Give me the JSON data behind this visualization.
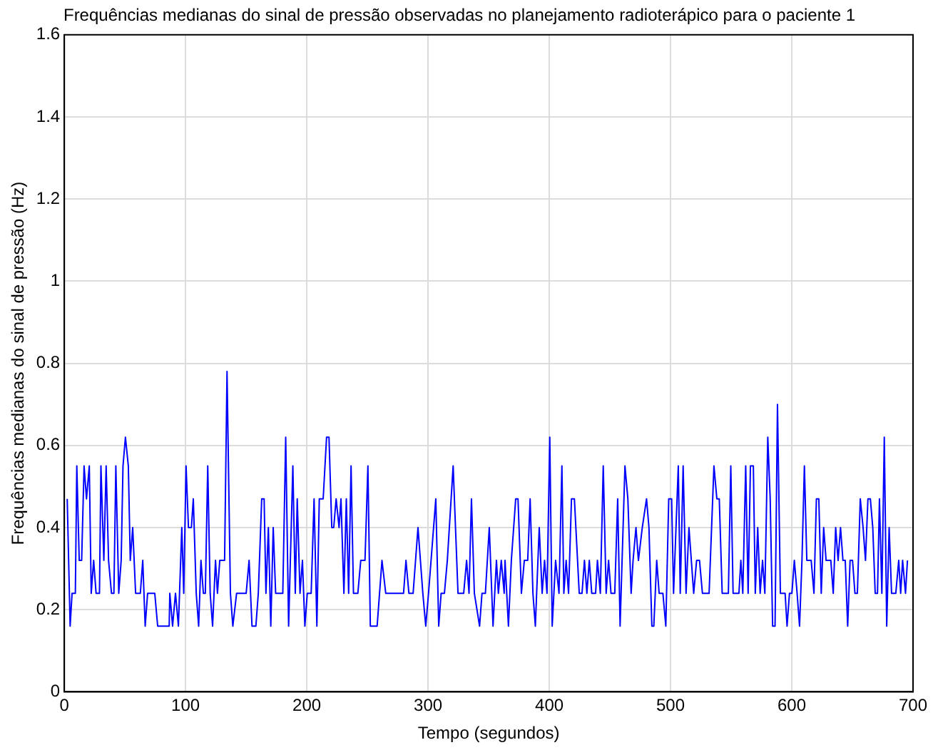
{
  "chart_data": {
    "type": "line",
    "title": "Frequências medianas do sinal de pressão observadas no planejamento radioterápico para o paciente 1",
    "xlabel": "Tempo (segundos)",
    "ylabel": "Frequências medianas do sinal de pressão (Hz)",
    "xlim": [
      0,
      700
    ],
    "xticks": [
      0,
      100,
      200,
      300,
      400,
      500,
      600,
      700
    ],
    "ylim": [
      0,
      1.6
    ],
    "yticks": [
      0,
      0.2,
      0.4,
      0.6,
      0.8,
      1,
      1.2,
      1.4,
      1.6
    ],
    "grid": true,
    "legend": false,
    "marker": "none",
    "line_style": "solid",
    "series": [
      {
        "color": "#0000ff",
        "x": [
          2.4,
          4.8,
          6.4,
          9.1,
          10.3,
          12.3,
          14.3,
          16.3,
          18.3,
          20.6,
          22.2,
          24.2,
          26.2,
          29,
          30.2,
          32.6,
          34.5,
          36.5,
          38.9,
          40.9,
          42.5,
          44.9,
          46.9,
          48.4,
          50.4,
          52.8,
          54.4,
          56.4,
          58.8,
          62.7,
          64.7,
          66.7,
          68.7,
          74.6,
          77,
          86.5,
          87,
          89.3,
          91.7,
          94.1,
          96.9,
          98.5,
          100.4,
          102.4,
          104.8,
          106.4,
          108.8,
          110.8,
          112.7,
          114.7,
          116.3,
          118.3,
          120.3,
          122.3,
          124.7,
          126.3,
          128.2,
          132.2,
          134.2,
          137,
          139,
          142.1,
          150,
          152.4,
          154.8,
          158,
          160,
          162.8,
          164.8,
          166.3,
          168.3,
          170.3,
          172.3,
          174.3,
          180.2,
          182.6,
          185,
          188.5,
          190.5,
          192.1,
          194.4,
          196.4,
          198.4,
          200.4,
          203.6,
          206,
          208.3,
          210.3,
          213.5,
          216.3,
          218.3,
          220.6,
          222.2,
          224.2,
          226.6,
          228.2,
          230.6,
          232.6,
          234.5,
          236.5,
          238.5,
          242.1,
          244.5,
          248,
          250.4,
          252.4,
          258,
          262,
          265.1,
          279.8,
          281.8,
          284.2,
          287.7,
          291.7,
          295.7,
          298.1,
          300.4,
          306.4,
          308.8,
          310.8,
          313.5,
          315.9,
          320.7,
          324.7,
          329.4,
          331.8,
          333.8,
          335.8,
          338.2,
          342.5,
          344.5,
          347.3,
          350.5,
          353.6,
          356.4,
          358,
          360.4,
          362.8,
          363.5,
          366.3,
          368.7,
          372.3,
          374.2,
          377,
          379.4,
          382.2,
          384.2,
          386.5,
          388.5,
          391.7,
          394.1,
          396.1,
          398.1,
          400.4,
          402.4,
          405.2,
          408,
          410.4,
          412,
          413.9,
          415.9,
          418.3,
          420.7,
          424.7,
          427,
          429,
          431,
          433,
          435,
          438.2,
          439.7,
          442.1,
          444.5,
          446.9,
          448.9,
          450.9,
          454,
          456.4,
          458.4,
          462.4,
          464.8,
          467.5,
          469.1,
          471.5,
          473.5,
          476.7,
          480.2,
          482.2,
          484.6,
          486.2,
          488.6,
          490.6,
          493.7,
          496.1,
          498.5,
          500.9,
          502.5,
          506.4,
          508,
          510.4,
          512.8,
          515.2,
          519.1,
          521.5,
          523.9,
          526.3,
          531.8,
          535.8,
          538.2,
          540.2,
          542.6,
          547.7,
          549.7,
          551.6,
          556.4,
          558,
          559.6,
          562,
          564,
          565.9,
          568.3,
          569.9,
          571.9,
          573.9,
          575.9,
          577.8,
          580.2,
          582.2,
          584.2,
          586.2,
          588.2,
          590.6,
          594.5,
          596.1,
          598.1,
          600.1,
          602.1,
          604.4,
          606.4,
          608.4,
          610.4,
          612.4,
          616,
          618.3,
          620.3,
          622.3,
          624.3,
          626.3,
          628.3,
          632.2,
          634.2,
          636.2,
          638.2,
          640.2,
          642.2,
          644.1,
          646.1,
          648.1,
          650.1,
          652.1,
          654.1,
          656.5,
          658.8,
          660.8,
          662.8,
          664.8,
          666.8,
          668.8,
          670.7,
          672.3,
          674.3,
          676.3,
          678.3,
          680.3,
          682.3,
          685.8,
          688.2,
          689.8,
          691.4,
          693.8,
          695.4
        ],
        "values": [
          0.47,
          0.16,
          0.24,
          0.24,
          0.55,
          0.32,
          0.32,
          0.55,
          0.47,
          0.55,
          0.24,
          0.32,
          0.24,
          0.24,
          0.55,
          0.32,
          0.55,
          0.32,
          0.24,
          0.24,
          0.55,
          0.24,
          0.32,
          0.55,
          0.62,
          0.55,
          0.32,
          0.4,
          0.24,
          0.24,
          0.32,
          0.16,
          0.24,
          0.24,
          0.16,
          0.16,
          0.24,
          0.16,
          0.24,
          0.16,
          0.4,
          0.24,
          0.55,
          0.4,
          0.4,
          0.47,
          0.24,
          0.16,
          0.32,
          0.24,
          0.24,
          0.55,
          0.24,
          0.16,
          0.32,
          0.24,
          0.32,
          0.32,
          0.78,
          0.24,
          0.16,
          0.24,
          0.24,
          0.32,
          0.16,
          0.16,
          0.24,
          0.47,
          0.47,
          0.24,
          0.4,
          0.16,
          0.4,
          0.24,
          0.24,
          0.62,
          0.16,
          0.55,
          0.24,
          0.47,
          0.24,
          0.32,
          0.16,
          0.24,
          0.24,
          0.47,
          0.16,
          0.47,
          0.47,
          0.62,
          0.62,
          0.4,
          0.4,
          0.47,
          0.4,
          0.47,
          0.24,
          0.47,
          0.24,
          0.55,
          0.24,
          0.24,
          0.32,
          0.32,
          0.55,
          0.16,
          0.16,
          0.32,
          0.24,
          0.24,
          0.32,
          0.24,
          0.24,
          0.4,
          0.24,
          0.16,
          0.24,
          0.47,
          0.16,
          0.24,
          0.24,
          0.32,
          0.55,
          0.24,
          0.24,
          0.32,
          0.24,
          0.47,
          0.24,
          0.16,
          0.24,
          0.24,
          0.4,
          0.16,
          0.32,
          0.24,
          0.32,
          0.24,
          0.32,
          0.16,
          0.32,
          0.47,
          0.47,
          0.24,
          0.32,
          0.32,
          0.47,
          0.24,
          0.16,
          0.4,
          0.24,
          0.32,
          0.24,
          0.62,
          0.16,
          0.32,
          0.24,
          0.55,
          0.24,
          0.32,
          0.24,
          0.47,
          0.47,
          0.24,
          0.24,
          0.32,
          0.24,
          0.32,
          0.24,
          0.24,
          0.32,
          0.24,
          0.55,
          0.24,
          0.32,
          0.24,
          0.24,
          0.47,
          0.16,
          0.55,
          0.47,
          0.24,
          0.32,
          0.4,
          0.32,
          0.4,
          0.47,
          0.4,
          0.16,
          0.16,
          0.32,
          0.24,
          0.24,
          0.16,
          0.47,
          0.47,
          0.24,
          0.55,
          0.24,
          0.55,
          0.24,
          0.4,
          0.24,
          0.32,
          0.32,
          0.24,
          0.24,
          0.55,
          0.47,
          0.47,
          0.24,
          0.24,
          0.55,
          0.24,
          0.24,
          0.32,
          0.24,
          0.55,
          0.24,
          0.55,
          0.55,
          0.24,
          0.4,
          0.24,
          0.32,
          0.24,
          0.62,
          0.47,
          0.16,
          0.16,
          0.7,
          0.24,
          0.24,
          0.16,
          0.24,
          0.24,
          0.32,
          0.24,
          0.16,
          0.32,
          0.55,
          0.32,
          0.32,
          0.24,
          0.47,
          0.47,
          0.24,
          0.4,
          0.32,
          0.32,
          0.24,
          0.4,
          0.32,
          0.4,
          0.32,
          0.32,
          0.16,
          0.32,
          0.32,
          0.24,
          0.24,
          0.47,
          0.4,
          0.32,
          0.47,
          0.47,
          0.4,
          0.24,
          0.24,
          0.47,
          0.24,
          0.62,
          0.16,
          0.4,
          0.24,
          0.24,
          0.32,
          0.24,
          0.32,
          0.24,
          0.32
        ]
      }
    ]
  }
}
